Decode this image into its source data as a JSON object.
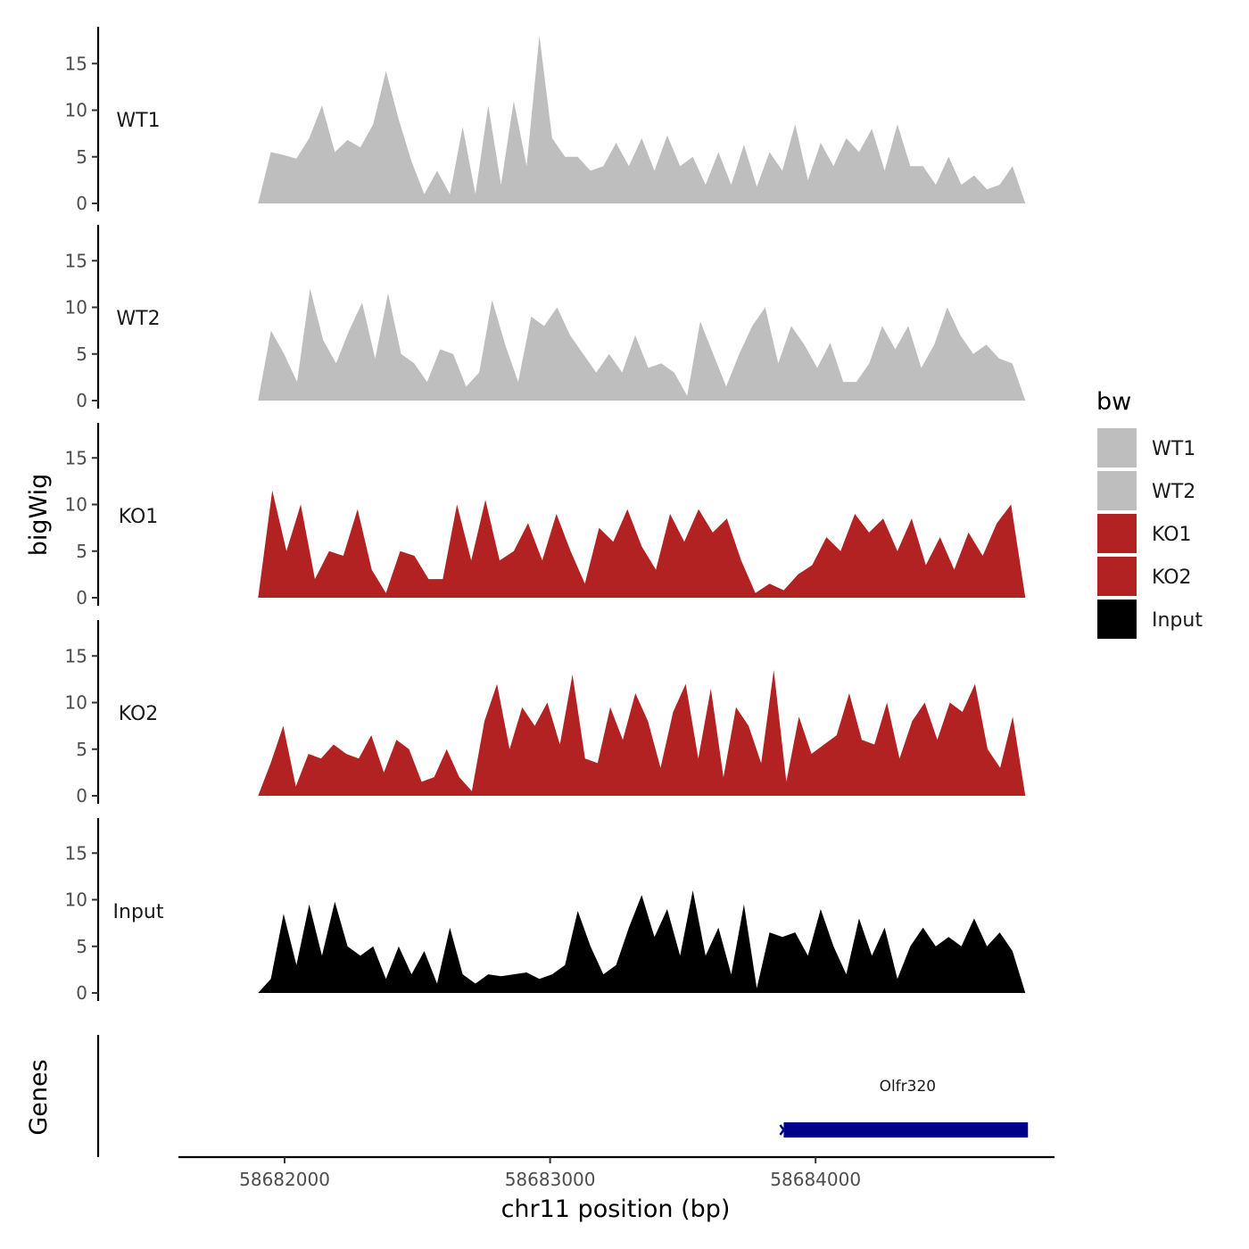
{
  "chart_data": {
    "type": "area",
    "ylabel": "bigWig",
    "genes_label": "Genes",
    "xlabel": "chr11 position (bp)",
    "xlim": [
      58681600,
      58684900
    ],
    "x_range_data": [
      58681900,
      58684790
    ],
    "ylim": [
      0,
      19
    ],
    "x_ticks": [
      {
        "value": 58682000,
        "label": "58682000"
      },
      {
        "value": 58683000,
        "label": "58683000"
      },
      {
        "value": 58684000,
        "label": "58684000"
      }
    ],
    "y_ticks": [
      {
        "value": 0,
        "label": "0"
      },
      {
        "value": 5,
        "label": "5"
      },
      {
        "value": 10,
        "label": "10"
      },
      {
        "value": 15,
        "label": "15"
      }
    ],
    "series": [
      {
        "name": "WT1",
        "color": "#BEBEBE",
        "values": [
          0,
          5.5,
          5.2,
          4.8,
          7,
          10.5,
          5.5,
          6.8,
          6,
          8.5,
          14.2,
          9,
          4.5,
          1,
          3.5,
          1,
          8.2,
          1,
          10.5,
          2,
          11,
          4,
          18,
          7,
          5,
          5,
          3.5,
          4,
          6.5,
          4,
          7,
          3.5,
          7.3,
          4,
          5,
          2,
          5.5,
          2,
          6.3,
          1.8,
          5.5,
          3.5,
          8.5,
          2.5,
          6.5,
          4,
          7,
          5.5,
          8,
          3.5,
          8.5,
          4,
          4,
          2,
          5,
          2,
          3,
          1.5,
          2,
          4,
          0
        ]
      },
      {
        "name": "WT2",
        "color": "#BEBEBE",
        "values": [
          0,
          7.5,
          5,
          2,
          12,
          6.5,
          4,
          7.5,
          10.5,
          4.5,
          11.5,
          5,
          4,
          2,
          5.5,
          5,
          1.5,
          3,
          10.8,
          6,
          2,
          9,
          8,
          10,
          7,
          5,
          3,
          5,
          3,
          7,
          3.5,
          4,
          3,
          0.5,
          8.5,
          5,
          1.5,
          5,
          8,
          10,
          4,
          8,
          6,
          3.5,
          6.2,
          2,
          2,
          4,
          8,
          5.5,
          8,
          3.5,
          6,
          10,
          7,
          5,
          6,
          4.5,
          4,
          0
        ]
      },
      {
        "name": "KO1",
        "color": "#B22222",
        "values": [
          0,
          11.5,
          5,
          10,
          2,
          5,
          4.5,
          9.5,
          3,
          0.5,
          5,
          4.5,
          2,
          2,
          10,
          4,
          10.5,
          4,
          5,
          8,
          4,
          9,
          5,
          1.5,
          7.5,
          6,
          9.5,
          5.5,
          3,
          9,
          6,
          9.5,
          7,
          8.5,
          4,
          0.5,
          1.5,
          0.8,
          2.5,
          3.5,
          6.5,
          5,
          9,
          7,
          8.5,
          5,
          8.5,
          3.5,
          6.5,
          3,
          7,
          4.5,
          8,
          10,
          0
        ]
      },
      {
        "name": "KO2",
        "color": "#B22222",
        "values": [
          0,
          3.5,
          7.5,
          1,
          4.5,
          4,
          5.5,
          4.5,
          4,
          6.5,
          2.5,
          6,
          5,
          1.5,
          2,
          5,
          2,
          0.5,
          8,
          12,
          5,
          9.5,
          7.5,
          10,
          5.5,
          13,
          4,
          3.5,
          9.5,
          6,
          11,
          8,
          3,
          9,
          12,
          4,
          11.5,
          2,
          9.5,
          7.5,
          3.5,
          13.5,
          1.5,
          8.5,
          4.5,
          5.5,
          6.5,
          11,
          6,
          5.5,
          10,
          4,
          8,
          10,
          6,
          10,
          9,
          12,
          5,
          3,
          8.5,
          0
        ]
      },
      {
        "name": "Input",
        "color": "#000000",
        "values": [
          0,
          1.5,
          8.5,
          3,
          9.5,
          4,
          9.8,
          5,
          4,
          5,
          1.5,
          5,
          2,
          4.5,
          1,
          7,
          2,
          1,
          2,
          1.8,
          2,
          2.2,
          1.5,
          2,
          3,
          8.8,
          5,
          2,
          3,
          7,
          10.5,
          6,
          9,
          4,
          11,
          4,
          7,
          2,
          9.5,
          0.5,
          6.5,
          6,
          6.5,
          4,
          9,
          5,
          2,
          8,
          4,
          7,
          1.5,
          5,
          7,
          5,
          6,
          5,
          8,
          5,
          6.5,
          4.5,
          0
        ]
      }
    ],
    "legend_title": "bw",
    "legend": [
      {
        "label": "WT1",
        "color": "#BEBEBE"
      },
      {
        "label": "WT2",
        "color": "#BEBEBE"
      },
      {
        "label": "KO1",
        "color": "#B22222"
      },
      {
        "label": "KO2",
        "color": "#B22222"
      },
      {
        "label": "Input",
        "color": "#000000"
      }
    ],
    "genes": [
      {
        "name": "Olfr320",
        "start": 58683880,
        "end": 58684800,
        "color": "#00008B"
      }
    ]
  }
}
